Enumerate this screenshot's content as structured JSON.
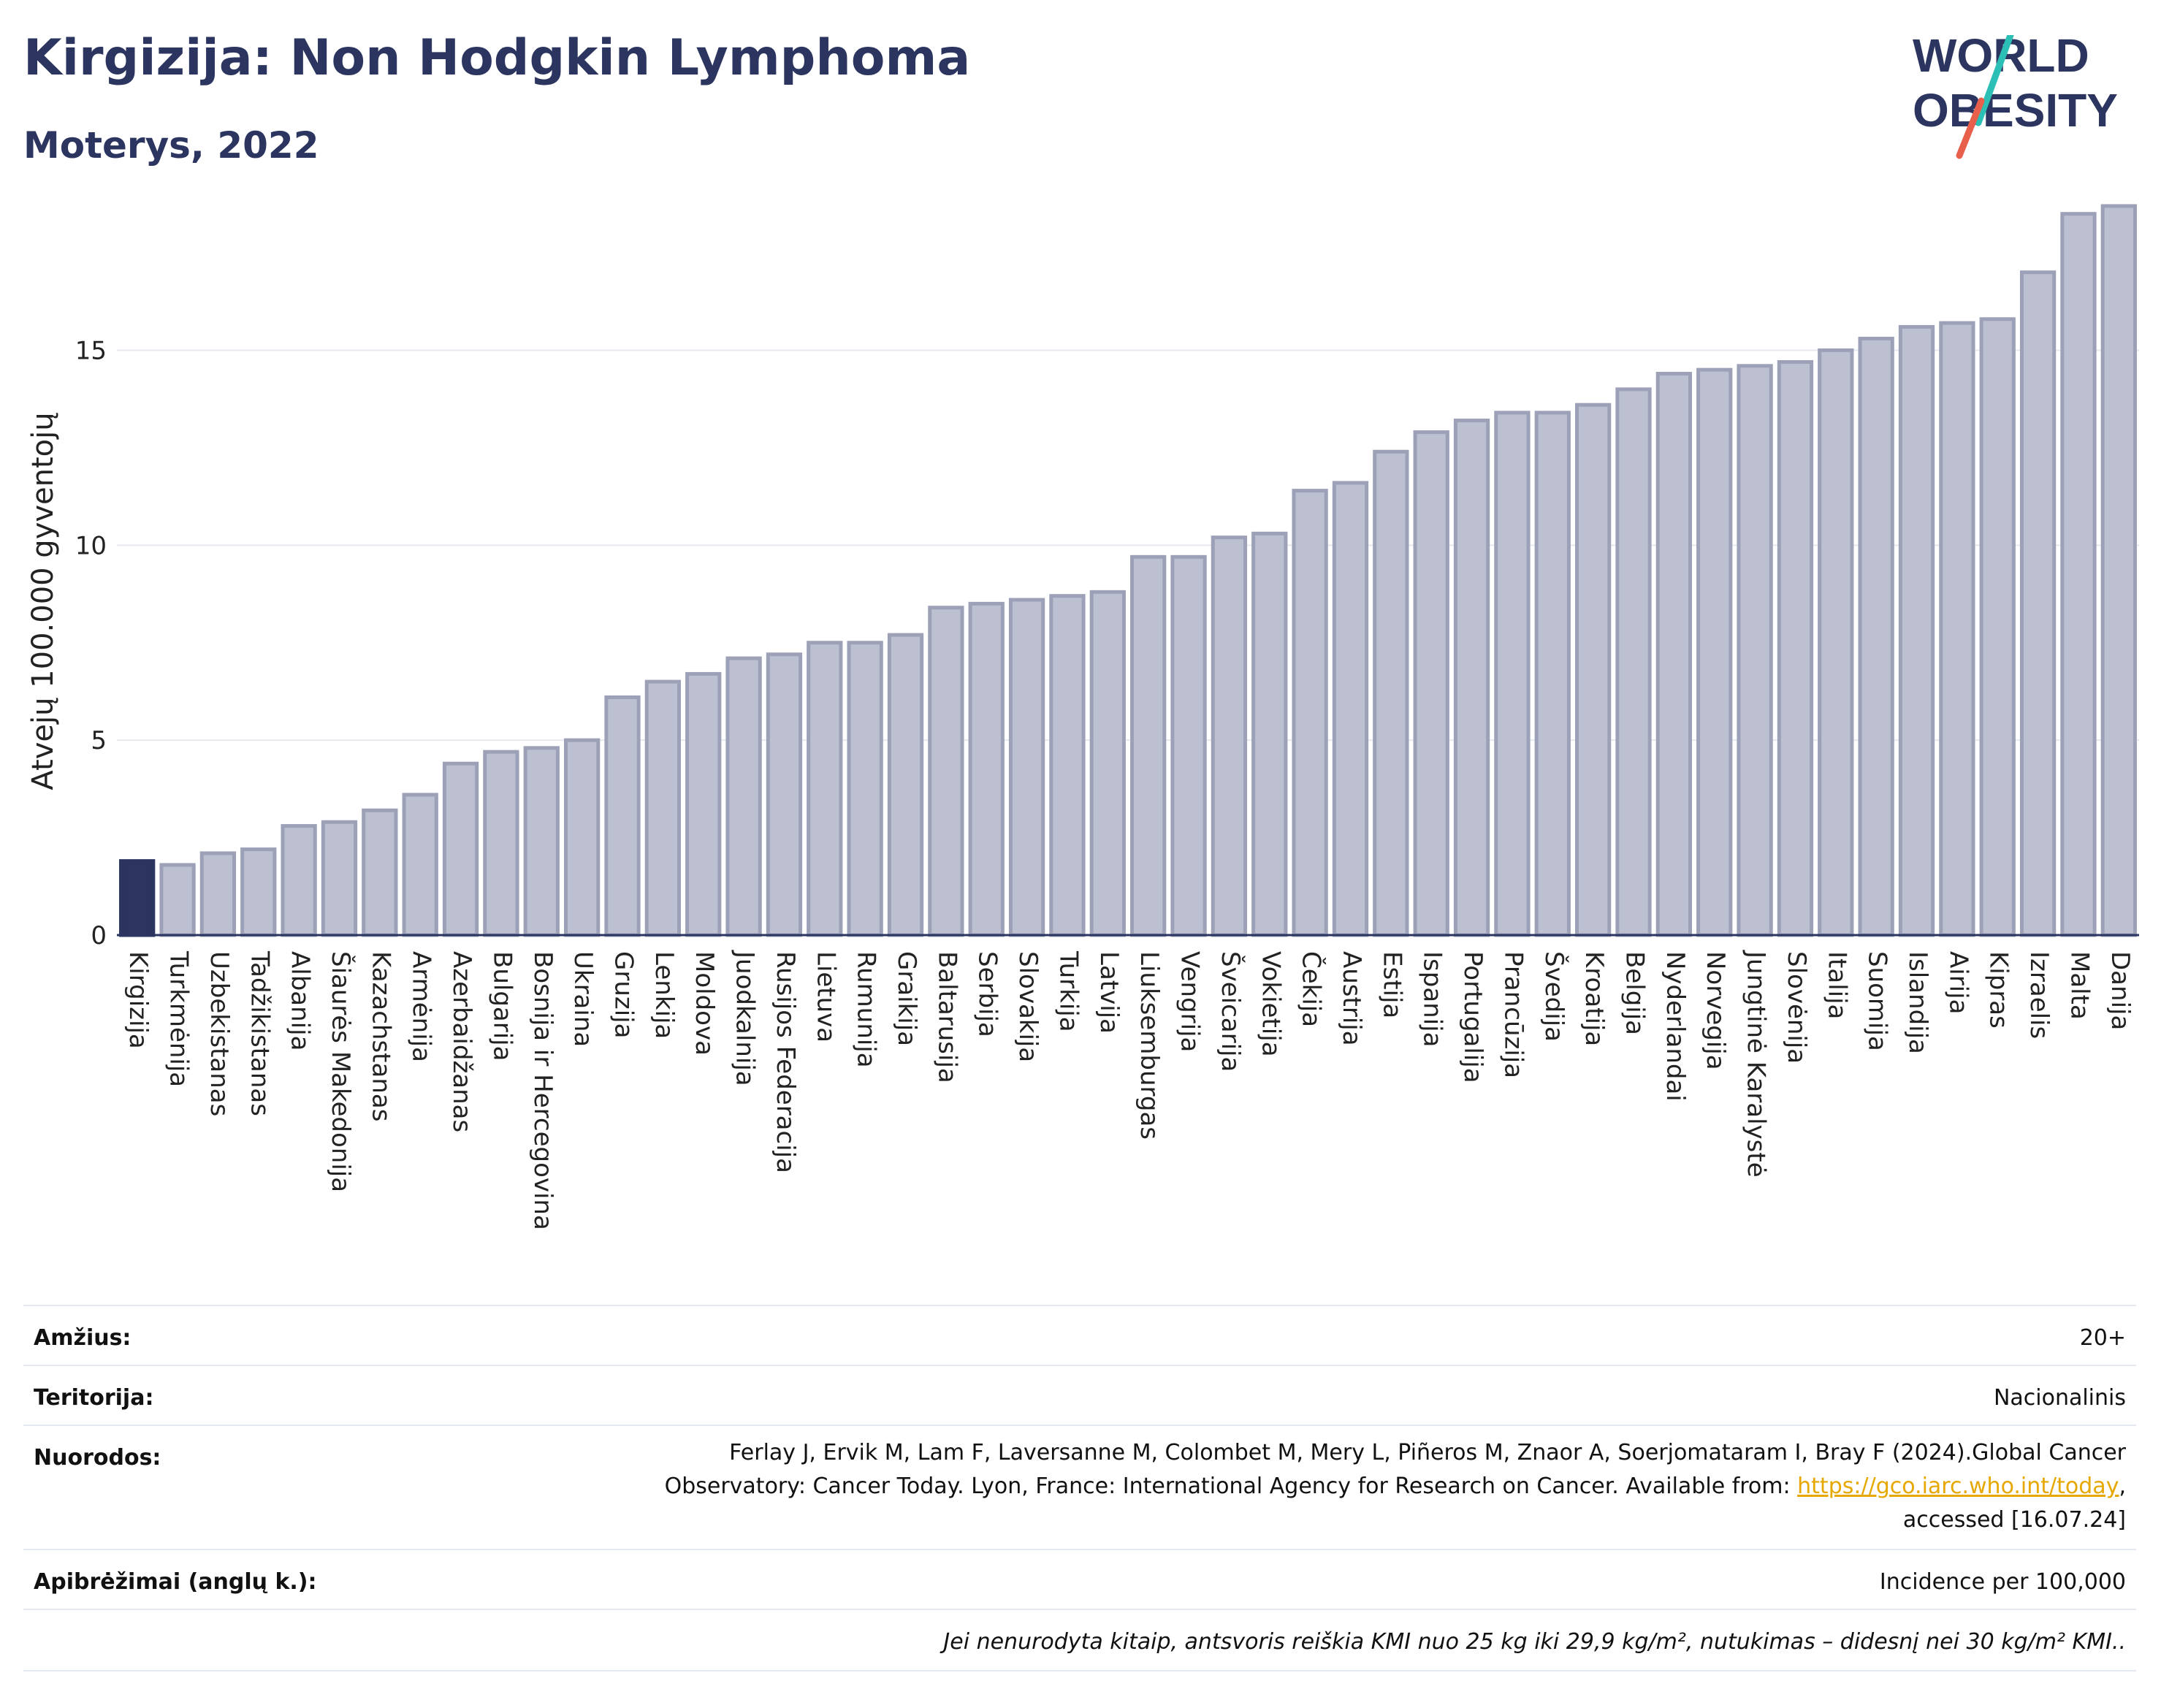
{
  "header": {
    "title": "Kirgizija: Non Hodgkin Lymphoma",
    "subtitle": "Moterys, 2022"
  },
  "logo": {
    "line1": "WORLD",
    "line2": "OBESITY"
  },
  "colors": {
    "highlight": "#2b355f",
    "bar": "#bcc0d0",
    "bar_stroke": "#9ca1b8",
    "grid": "#e6e9ef",
    "text": "#2b355f",
    "logo_slash_teal": "#2bbfb6",
    "logo_slash_red": "#e8604c"
  },
  "chart_data": {
    "type": "bar",
    "ylabel": "Atvejų 100.000 gyventojų",
    "ylim": [
      0,
      19
    ],
    "yticks": [
      0,
      5,
      10,
      15
    ],
    "grid": true,
    "highlight_category": "Kirgizija",
    "categories": [
      "Kirgizija",
      "Turkmėnija",
      "Uzbekistanas",
      "Tadžikistanas",
      "Albanija",
      "Šiaurės Makedonija",
      "Kazachstanas",
      "Armėnija",
      "Azerbaidžanas",
      "Bulgarija",
      "Bosnija ir Hercegovina",
      "Ukraina",
      "Gruzija",
      "Lenkija",
      "Moldova",
      "Juodkalnija",
      "Rusijos Federacija",
      "Lietuva",
      "Rumunija",
      "Graikija",
      "Baltarusija",
      "Serbija",
      "Slovakija",
      "Turkija",
      "Latvija",
      "Liuksemburgas",
      "Vengrija",
      "Šveicarija",
      "Vokietija",
      "Čekija",
      "Austrija",
      "Estija",
      "Ispanija",
      "Portugalija",
      "Prancūzija",
      "Švedija",
      "Kroatija",
      "Belgija",
      "Nyderlandai",
      "Norvegija",
      "Jungtinė Karalystė",
      "Slovėnija",
      "Italija",
      "Suomija",
      "Islandija",
      "Airija",
      "Kipras",
      "Izraelis",
      "Malta",
      "Danija"
    ],
    "values": [
      1.9,
      1.8,
      2.1,
      2.2,
      2.8,
      2.9,
      3.2,
      3.6,
      4.4,
      4.7,
      4.8,
      5.0,
      6.1,
      6.5,
      6.7,
      7.1,
      7.2,
      7.5,
      7.5,
      7.7,
      8.4,
      8.5,
      8.6,
      8.7,
      8.8,
      9.7,
      9.7,
      10.2,
      10.3,
      11.4,
      11.6,
      12.4,
      12.9,
      13.2,
      13.4,
      13.4,
      13.6,
      14.0,
      14.4,
      14.5,
      14.6,
      14.7,
      15.0,
      15.3,
      15.6,
      15.7,
      15.8,
      17.0,
      18.5,
      18.7
    ]
  },
  "meta": {
    "age_label": "Amžius:",
    "age_value": "20+",
    "territory_label": "Teritorija:",
    "territory_value": "Nacionalinis",
    "refs_label": "Nuorodos:",
    "refs_line1": "Ferlay J, Ervik M, Lam F, Laversanne M, Colombet M, Mery L, Piñeros M, Znaor A, Soerjomataram I, Bray F (2024).Global Cancer",
    "refs_line2_pre": "Observatory: Cancer Today. Lyon, France: International Agency for Research on Cancer. Available from: ",
    "refs_link": "https://gco.iarc.who.int/today",
    "refs_line2_post": ",",
    "refs_line3": "accessed [16.07.24]",
    "defs_label": "Apibrėžimai (anglų k.):",
    "defs_value": "Incidence per 100,000",
    "footnote": "Jei nenurodyta kitaip, antsvoris reiškia KMI nuo 25 kg iki 29,9 kg/m², nutukimas – didesnį nei 30 kg/m² KMI.."
  }
}
